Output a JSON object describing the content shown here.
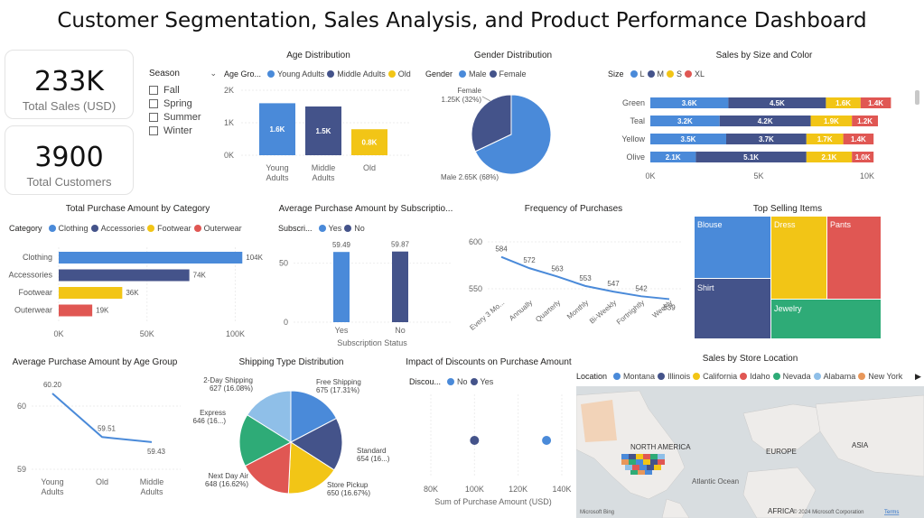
{
  "dashboard": {
    "title": "Customer Segmentation, Sales Analysis, and Product Performance Dashboard"
  },
  "kpis": {
    "sales_value": "233K",
    "sales_label": "Total Sales (USD)",
    "customers_value": "3900",
    "customers_label": "Total Customers"
  },
  "season_slicer": {
    "title": "Season",
    "options": [
      "Fall",
      "Spring",
      "Summer",
      "Winter"
    ]
  },
  "colors": {
    "blue": "#4a8ad9",
    "navy": "#44538a",
    "yellow": "#f2c516",
    "red": "#e05753",
    "green": "#2eab77",
    "lightblue": "#8fbfe8",
    "orange": "#e8975a"
  },
  "age_dist": {
    "title": "Age Distribution",
    "legend_title": "Age Gro...",
    "legend": [
      "Young Adults",
      "Middle Adults",
      "Old"
    ],
    "y_ticks": [
      "2K",
      "1K",
      "0K"
    ],
    "bars": [
      {
        "category": "Young Adults",
        "label": "1.6K",
        "value": 1.6
      },
      {
        "category": "Middle Adults",
        "label": "1.5K",
        "value": 1.5
      },
      {
        "category": "Old",
        "label": "0.8K",
        "value": 0.8
      }
    ],
    "x_labels": [
      [
        "Young",
        "Adults"
      ],
      [
        "Middle",
        "Adults"
      ],
      [
        "Old"
      ]
    ]
  },
  "gender_dist": {
    "title": "Gender Distribution",
    "legend_title": "Gender",
    "legend": [
      "Male",
      "Female"
    ],
    "female_label_1": "Female",
    "female_label_2": "1.25K (32%)",
    "male_label": "Male 2.65K (68%)",
    "male_value": 2.65,
    "female_value": 1.25
  },
  "size_color": {
    "title": "Sales by Size and Color",
    "legend_title": "Size",
    "legend": [
      "L",
      "M",
      "S",
      "XL"
    ],
    "rows": [
      {
        "color": "Green",
        "values": [
          3.6,
          4.5,
          1.6,
          1.4
        ],
        "labels": [
          "3.6K",
          "4.5K",
          "1.6K",
          "1.4K"
        ]
      },
      {
        "color": "Teal",
        "values": [
          3.2,
          4.2,
          1.9,
          1.2
        ],
        "labels": [
          "3.2K",
          "4.2K",
          "1.9K",
          "1.2K"
        ]
      },
      {
        "color": "Yellow",
        "values": [
          3.5,
          3.7,
          1.7,
          1.4
        ],
        "labels": [
          "3.5K",
          "3.7K",
          "1.7K",
          "1.4K"
        ]
      },
      {
        "color": "Olive",
        "values": [
          2.1,
          5.1,
          2.1,
          1.0
        ],
        "labels": [
          "2.1K",
          "5.1K",
          "2.1K",
          "1.0K"
        ]
      }
    ],
    "x_ticks": [
      "0K",
      "5K",
      "10K"
    ]
  },
  "category_purchase": {
    "title": "Total Purchase Amount by Category",
    "legend_title": "Category",
    "legend": [
      "Clothing",
      "Accessories",
      "Footwear",
      "Outerwear"
    ],
    "bars": [
      {
        "category": "Clothing",
        "value": 104,
        "label": "104K"
      },
      {
        "category": "Accessories",
        "value": 74,
        "label": "74K"
      },
      {
        "category": "Footwear",
        "value": 36,
        "label": "36K"
      },
      {
        "category": "Outerwear",
        "value": 19,
        "label": "19K"
      }
    ],
    "x_ticks": [
      "0K",
      "50K",
      "100K"
    ]
  },
  "subscription": {
    "title": "Average Purchase Amount  by Subscriptio...",
    "legend_title": "Subscri...",
    "legend": [
      "Yes",
      "No"
    ],
    "bars": [
      {
        "category": "Yes",
        "value": 59.49,
        "label": "59.49"
      },
      {
        "category": "No",
        "value": 59.87,
        "label": "59.87"
      }
    ],
    "y_ticks": [
      "50",
      "0"
    ],
    "x_title": "Subscription Status"
  },
  "frequency": {
    "title": "Frequency of Purchases",
    "y_ticks": [
      "600",
      "550"
    ],
    "points": [
      {
        "category": "Every 3 Mo...",
        "value": 584,
        "label": "584"
      },
      {
        "category": "Annually",
        "value": 572,
        "label": "572"
      },
      {
        "category": "Quarterly",
        "value": 563,
        "label": "563"
      },
      {
        "category": "Monthly",
        "value": 553,
        "label": "553"
      },
      {
        "category": "Bi-Weekly",
        "value": 547,
        "label": "547"
      },
      {
        "category": "Fortnightly",
        "value": 542,
        "label": "542"
      },
      {
        "category": "Weekly",
        "value": 539,
        "label": "539"
      }
    ]
  },
  "top_items": {
    "title": "Top  Selling Items",
    "items": [
      "Blouse",
      "Dress",
      "Pants",
      "Shirt",
      "Jewelry"
    ]
  },
  "age_avg": {
    "title": "Average Purchase Amount by Age Group",
    "y_ticks": [
      "60",
      "59"
    ],
    "points": [
      {
        "category": "Young Adults",
        "value": 60.2,
        "label": "60.20"
      },
      {
        "category": "Old",
        "value": 59.51,
        "label": "59.51"
      },
      {
        "category": "Middle Adults",
        "value": 59.43,
        "label": "59.43"
      }
    ],
    "x_labels": [
      [
        "Young",
        "Adults"
      ],
      [
        "Old"
      ],
      [
        "Middle",
        "Adults"
      ]
    ]
  },
  "shipping": {
    "title": "Shipping Type Distribution",
    "slices": [
      {
        "name": "Free Shipping",
        "value": 675,
        "label": "675 (17.31%)"
      },
      {
        "name": "Standard",
        "value": 654,
        "label": "654 (16...)"
      },
      {
        "name": "Store Pickup",
        "value": 650,
        "label": "650 (16.67%)"
      },
      {
        "name": "Next Day Air",
        "value": 648,
        "label": "648 (16.62%)"
      },
      {
        "name": "Express",
        "value": 646,
        "label": "646 (16...)"
      },
      {
        "name": "2-Day Shipping",
        "value": 627,
        "label": "627 (16.08%)"
      }
    ]
  },
  "discounts": {
    "title": "Impact of Discounts on Purchase Amount",
    "legend_title": "Discou...",
    "legend": [
      "No",
      "Yes"
    ],
    "points": [
      {
        "discount": "No",
        "value": 133
      },
      {
        "discount": "Yes",
        "value": 100
      }
    ],
    "x_ticks": [
      "80K",
      "100K",
      "120K",
      "140K"
    ],
    "x_title": "Sum of Purchase Amount (USD)"
  },
  "store_map": {
    "title": "Sales by Store Location",
    "legend_title": "Location",
    "legend": [
      "Montana",
      "Illinois",
      "California",
      "Idaho",
      "Nevada",
      "Alabama",
      "New York"
    ],
    "labels": {
      "north_america": "NORTH AMERICA",
      "europe": "EUROPE",
      "asia": "ASIA",
      "atlantic": "Atlantic Ocean",
      "africa": "AFRICA"
    },
    "attribution": "© 2024 Microsoft Corporation",
    "terms": "Terms",
    "bing": "Microsoft Bing"
  }
}
